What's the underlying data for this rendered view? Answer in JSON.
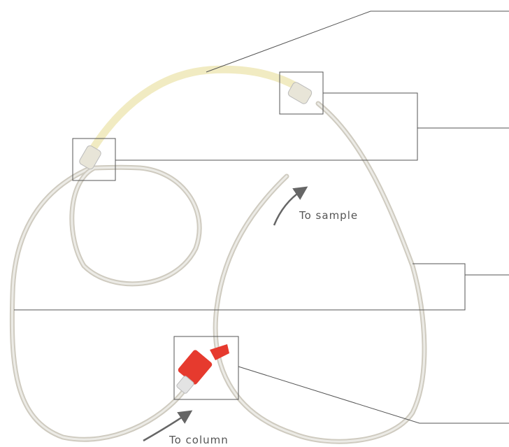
{
  "annotations": [
    {
      "text": "To sample"
    },
    {
      "text": "To column"
    }
  ]
}
